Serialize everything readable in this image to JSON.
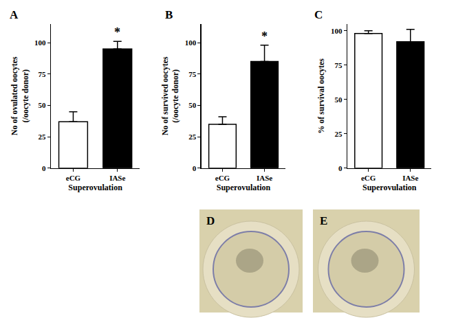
{
  "chart_data": [
    {
      "panel": "A",
      "type": "bar",
      "categories": [
        "eCG",
        "IASe"
      ],
      "values": [
        37,
        95
      ],
      "errors": [
        8,
        6
      ],
      "colors": [
        "#ffffff",
        "#000000"
      ],
      "x_label": "Superovulation",
      "y_label": "No of ovulated oocytes (/oocyte donor)",
      "ylim": [
        0,
        115
      ],
      "yticks": [
        0,
        25,
        50,
        75,
        100
      ],
      "annotations": [
        {
          "category": "IASe",
          "text": "*"
        }
      ]
    },
    {
      "panel": "B",
      "type": "bar",
      "categories": [
        "eCG",
        "IASe"
      ],
      "values": [
        35,
        85
      ],
      "errors": [
        6,
        13
      ],
      "colors": [
        "#ffffff",
        "#000000"
      ],
      "x_label": "Superovulation",
      "y_label": "No of survived oocytes (/oocyte donor)",
      "ylim": [
        0,
        115
      ],
      "yticks": [
        0,
        25,
        50,
        75,
        100
      ],
      "annotations": [
        {
          "category": "IASe",
          "text": "*"
        }
      ]
    },
    {
      "panel": "C",
      "type": "bar",
      "categories": [
        "eCG",
        "IASe"
      ],
      "values": [
        98,
        92
      ],
      "errors": [
        2,
        9
      ],
      "colors": [
        "#ffffff",
        "#000000"
      ],
      "x_label": "Superovulation",
      "y_label": "% of survival oocytes",
      "ylim": [
        0,
        105
      ],
      "yticks": [
        0,
        25,
        50,
        75,
        100
      ]
    }
  ],
  "images": [
    {
      "panel": "D"
    },
    {
      "panel": "E"
    }
  ]
}
